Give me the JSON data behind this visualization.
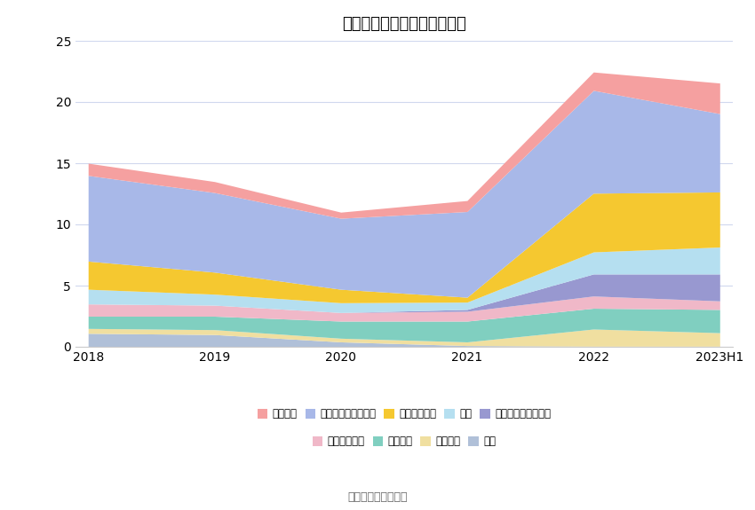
{
  "title": "历年主要资产堆积图（亿元）",
  "source": "数据来源：恒生聚源",
  "x_labels": [
    "2018",
    "2019",
    "2020",
    "2021",
    "2022",
    "2023H1"
  ],
  "series": [
    {
      "name": "商誉",
      "color": "#b0c0d8",
      "values": [
        1.1,
        1.0,
        0.4,
        0.1,
        0.05,
        0.05
      ]
    },
    {
      "name": "无形资产",
      "color": "#f0dfa0",
      "values": [
        0.4,
        0.4,
        0.3,
        0.3,
        1.4,
        1.1
      ]
    },
    {
      "name": "固定资产",
      "color": "#80cfc0",
      "values": [
        1.0,
        1.1,
        1.4,
        1.7,
        1.7,
        1.9
      ]
    },
    {
      "name": "投资性房地产",
      "color": "#f0b8c8",
      "values": [
        1.0,
        0.9,
        0.7,
        0.8,
        1.0,
        0.7
      ]
    },
    {
      "name": "交易性金融资产合计",
      "color": "#9898d0",
      "values": [
        0.0,
        0.0,
        0.0,
        0.15,
        1.8,
        2.2
      ]
    },
    {
      "name": "存货",
      "color": "#b5dff0",
      "values": [
        1.2,
        0.9,
        0.8,
        0.6,
        1.8,
        2.2
      ]
    },
    {
      "name": "应收款项融资",
      "color": "#f5c830",
      "values": [
        2.3,
        1.8,
        1.1,
        0.4,
        4.8,
        4.5
      ]
    },
    {
      "name": "应收账款及应收票据",
      "color": "#a8b8e8",
      "values": [
        7.0,
        6.5,
        5.8,
        7.0,
        8.4,
        6.4
      ]
    },
    {
      "name": "货币资金",
      "color": "#f5a0a0",
      "values": [
        1.0,
        0.9,
        0.5,
        0.9,
        1.5,
        2.5
      ]
    }
  ],
  "ylim": [
    0,
    25
  ],
  "yticks": [
    0,
    5,
    10,
    15,
    20,
    25
  ],
  "bg_color": "#ffffff",
  "grid_color": "#d0d8ee",
  "axis_color": "#cccccc",
  "legend_row1": [
    {
      "name": "货币资金",
      "color": "#f5a0a0"
    },
    {
      "name": "应收账款及应收票据",
      "color": "#a8b8e8"
    },
    {
      "name": "应收款项融资",
      "color": "#f5c830"
    },
    {
      "name": "存货",
      "color": "#b5dff0"
    },
    {
      "name": "交易性金融资产合计",
      "color": "#9898d0"
    }
  ],
  "legend_row2": [
    {
      "name": "投资性房地产",
      "color": "#f0b8c8"
    },
    {
      "name": "固定资产",
      "color": "#80cfc0"
    },
    {
      "name": "无形资产",
      "color": "#f0dfa0"
    },
    {
      "name": "商誉",
      "color": "#b0c0d8"
    }
  ]
}
